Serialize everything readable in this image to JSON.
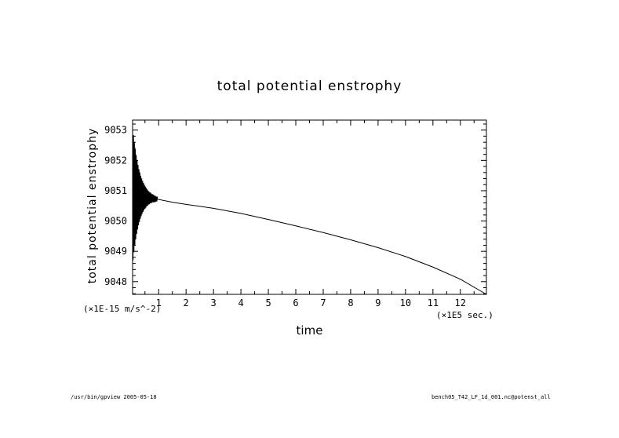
{
  "chart_data": {
    "type": "line",
    "title": "total potential enstrophy",
    "xlabel": "time",
    "ylabel": "total potential enstrophy",
    "x_units": "(×1E5 sec.)",
    "y_units": "(×1E-15 m/s^-2)",
    "xlim": [
      0.05,
      12.95
    ],
    "ylim": [
      9047.58,
      9053.33
    ],
    "x_ticks": [
      1,
      2,
      3,
      4,
      5,
      6,
      7,
      8,
      9,
      10,
      11,
      12
    ],
    "y_ticks": [
      9048,
      9049,
      9050,
      9051,
      9052,
      9053
    ],
    "grid": false,
    "series": [
      {
        "color": "#000000",
        "oscillation": {
          "x_start": 0.05,
          "x_end": 0.95,
          "center_start": 9050.85,
          "center_end": 9050.72,
          "initial_amplitude": 2.3,
          "decay_per_unit": 4.0,
          "cycles_per_unit": 30
        },
        "x": [
          0.95,
          1.5,
          2,
          3,
          4,
          5,
          6,
          7,
          8,
          9,
          10,
          11,
          12,
          12.95
        ],
        "y": [
          9050.72,
          9050.62,
          9050.55,
          9050.42,
          9050.25,
          9050.05,
          9049.84,
          9049.62,
          9049.38,
          9049.12,
          9048.83,
          9048.48,
          9048.08,
          9047.58
        ]
      }
    ]
  },
  "footer": {
    "left": "/usr/bin/gpview  2005-05-18",
    "right": "bench05_T42_LF_1d_001.nc@potenst_all"
  }
}
